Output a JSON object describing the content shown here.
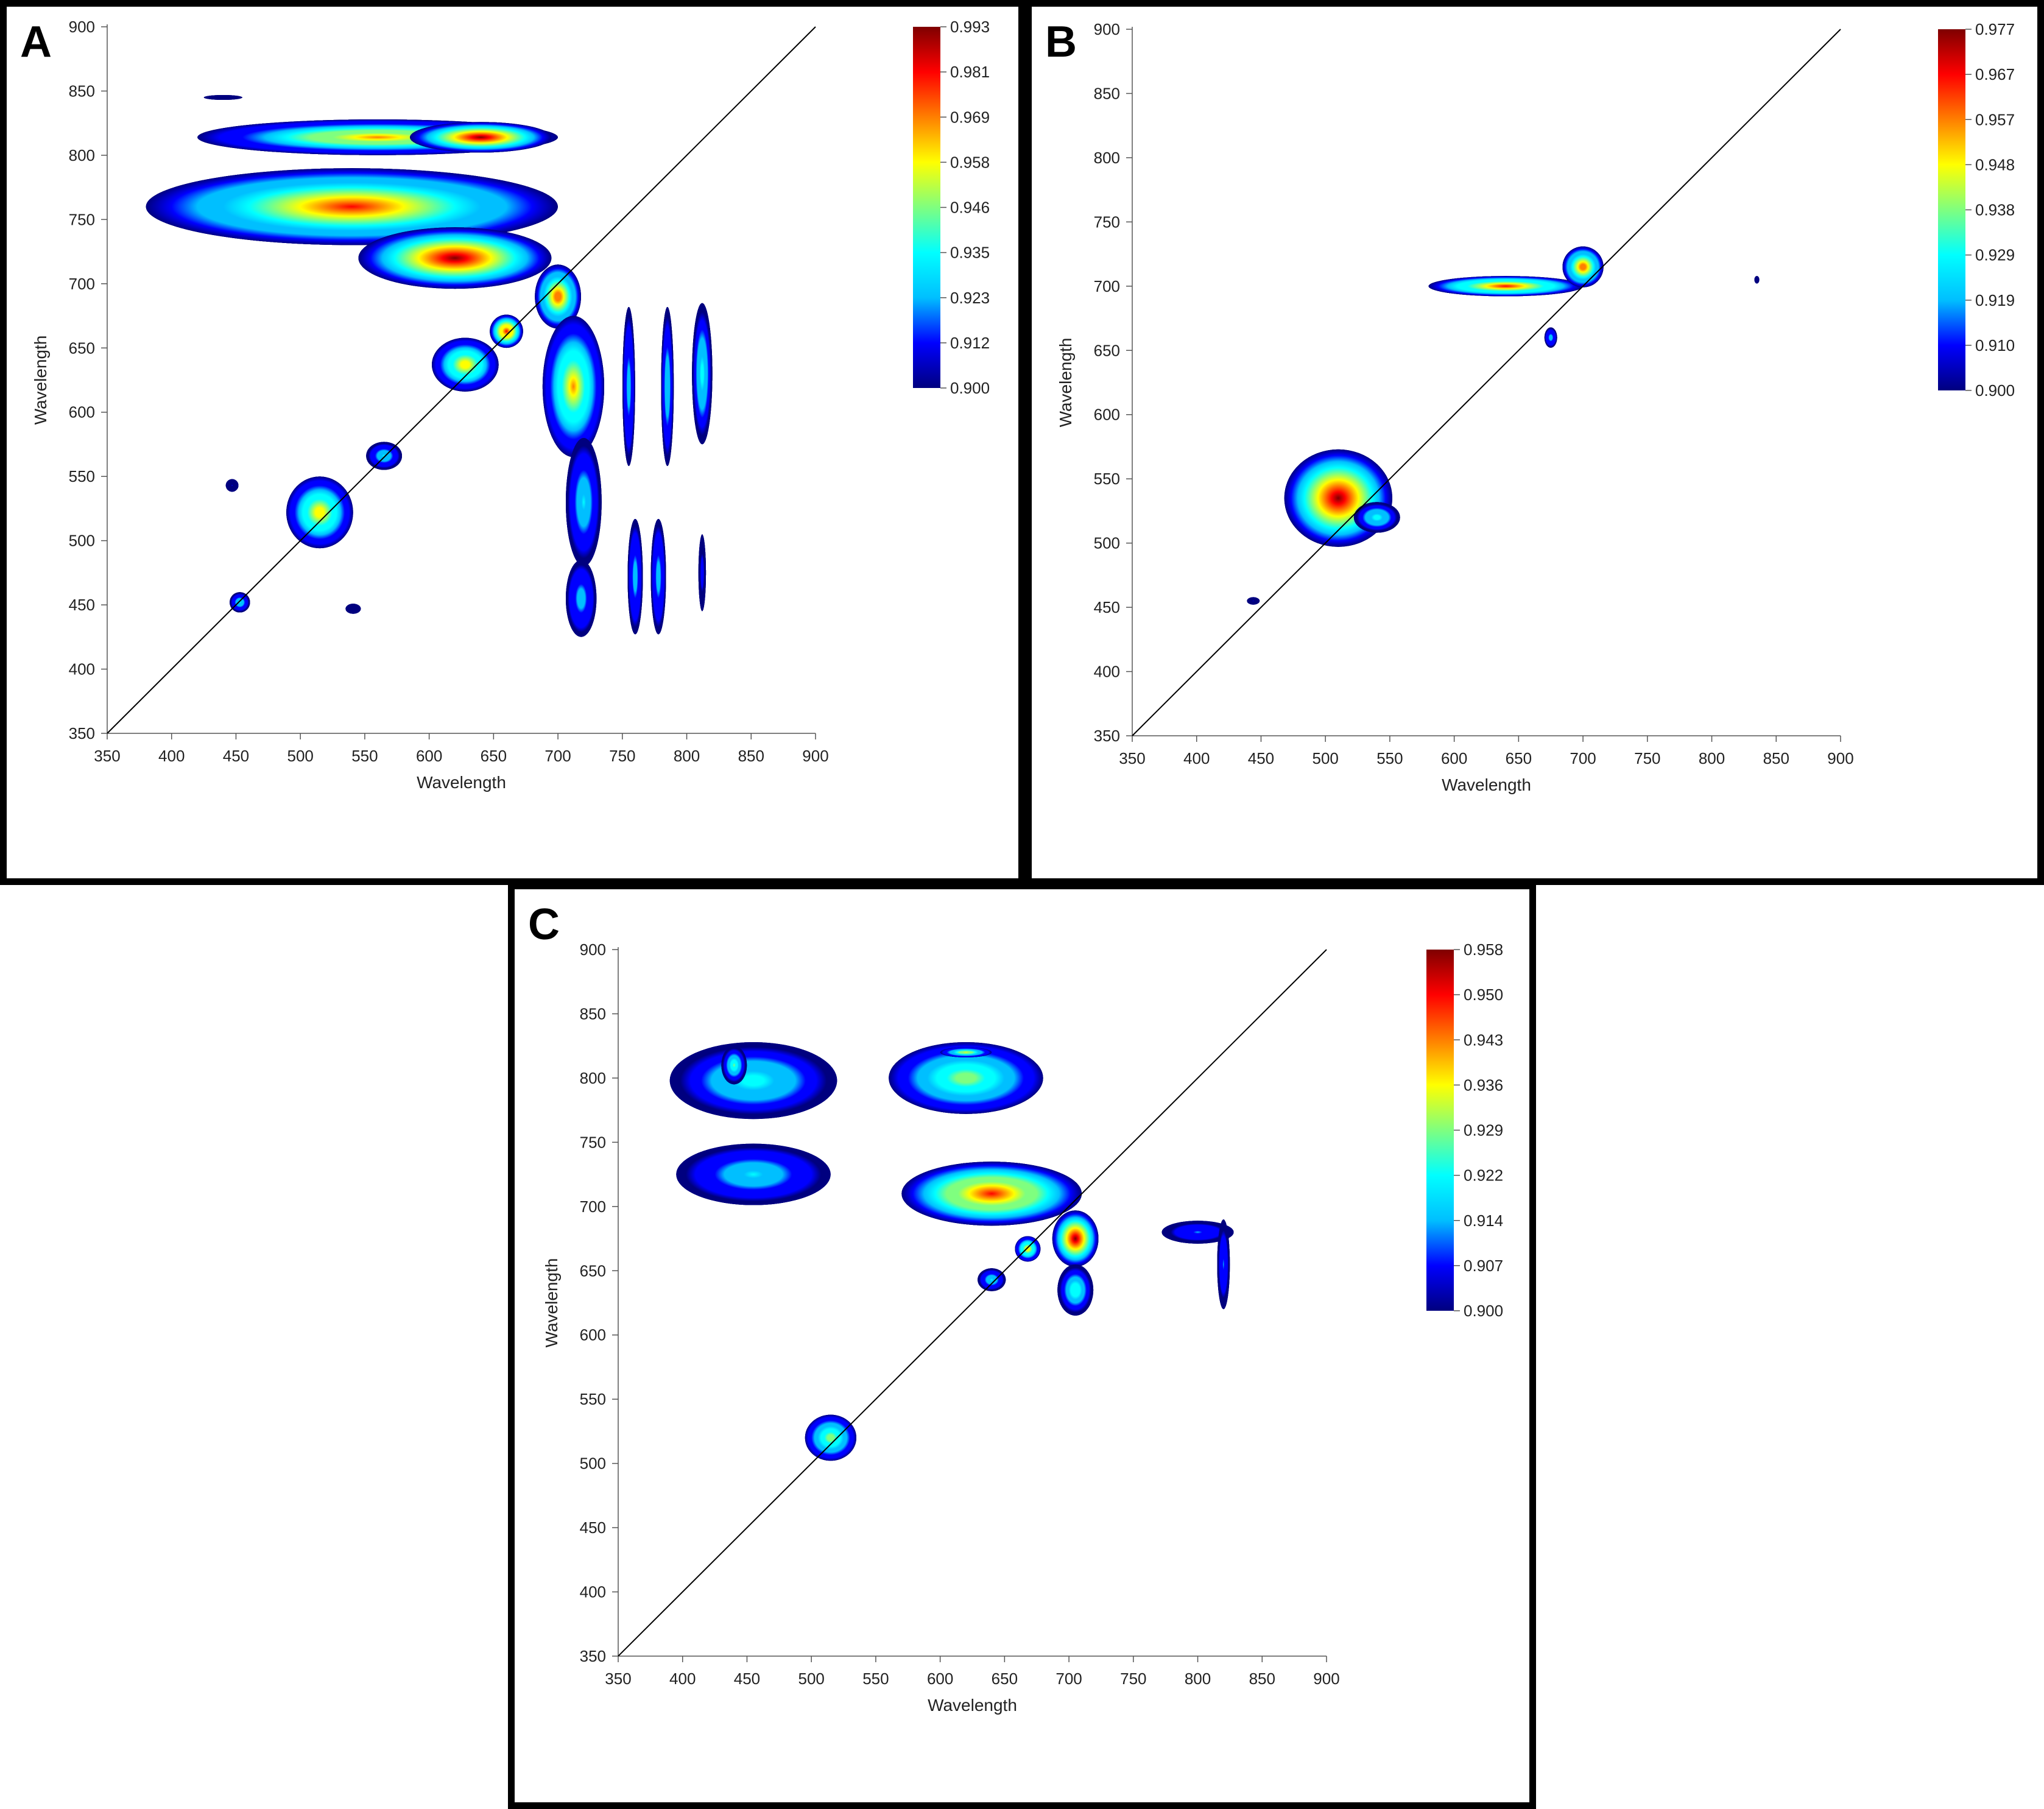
{
  "colors": {
    "colormap": [
      "#00007f",
      "#0000ff",
      "#00bfff",
      "#00ffff",
      "#7fff7f",
      "#ffff00",
      "#ff7f00",
      "#ff0000",
      "#7f0000"
    ],
    "diagonal": "#000000",
    "frame": "#000000"
  },
  "chart_data": [
    {
      "panel": "A",
      "type": "heatmap",
      "xlabel": "Wavelength",
      "ylabel": "Wavelength",
      "xlim": [
        350,
        900
      ],
      "ylim": [
        350,
        900
      ],
      "x_ticks": [
        "350",
        "400",
        "450",
        "500",
        "550",
        "600",
        "650",
        "700",
        "750",
        "800",
        "850",
        "900"
      ],
      "y_ticks": [
        "350",
        "400",
        "450",
        "500",
        "550",
        "600",
        "650",
        "700",
        "750",
        "800",
        "850",
        "900"
      ],
      "colorbar": {
        "min": 0.9,
        "max": 0.993,
        "labels": [
          "0.993",
          "0.981",
          "0.969",
          "0.958",
          "0.946",
          "0.935",
          "0.923",
          "0.912",
          "0.900"
        ]
      },
      "diagonal": true,
      "blobs": [
        {
          "x": 560,
          "y": 814,
          "rx": 140,
          "ry": 14,
          "v": 0.968
        },
        {
          "x": 640,
          "y": 814,
          "rx": 55,
          "ry": 12,
          "v": 0.99
        },
        {
          "x": 540,
          "y": 760,
          "rx": 160,
          "ry": 30,
          "v": 0.976
        },
        {
          "x": 620,
          "y": 720,
          "rx": 75,
          "ry": 24,
          "v": 0.99
        },
        {
          "x": 700,
          "y": 690,
          "rx": 18,
          "ry": 25,
          "v": 0.975
        },
        {
          "x": 712,
          "y": 620,
          "rx": 24,
          "ry": 55,
          "v": 0.965
        },
        {
          "x": 720,
          "y": 530,
          "rx": 14,
          "ry": 50,
          "v": 0.93
        },
        {
          "x": 718,
          "y": 455,
          "rx": 12,
          "ry": 30,
          "v": 0.925
        },
        {
          "x": 660,
          "y": 663,
          "rx": 13,
          "ry": 13,
          "v": 0.985
        },
        {
          "x": 628,
          "y": 637,
          "rx": 26,
          "ry": 21,
          "v": 0.962
        },
        {
          "x": 515,
          "y": 522,
          "rx": 26,
          "ry": 28,
          "v": 0.962
        },
        {
          "x": 565,
          "y": 566,
          "rx": 14,
          "ry": 11,
          "v": 0.932
        },
        {
          "x": 453,
          "y": 452,
          "rx": 8,
          "ry": 8,
          "v": 0.932
        },
        {
          "x": 447,
          "y": 543,
          "rx": 5,
          "ry": 5,
          "v": 0.906
        },
        {
          "x": 541,
          "y": 447,
          "rx": 6,
          "ry": 4,
          "v": 0.905
        },
        {
          "x": 755,
          "y": 620,
          "rx": 5,
          "ry": 62,
          "v": 0.925
        },
        {
          "x": 785,
          "y": 620,
          "rx": 5,
          "ry": 62,
          "v": 0.928
        },
        {
          "x": 812,
          "y": 630,
          "rx": 8,
          "ry": 55,
          "v": 0.935
        },
        {
          "x": 760,
          "y": 472,
          "rx": 6,
          "ry": 45,
          "v": 0.925
        },
        {
          "x": 778,
          "y": 472,
          "rx": 6,
          "ry": 45,
          "v": 0.925
        },
        {
          "x": 812,
          "y": 475,
          "rx": 3,
          "ry": 30,
          "v": 0.91
        },
        {
          "x": 440,
          "y": 845,
          "rx": 15,
          "ry": 2,
          "v": 0.905
        }
      ]
    },
    {
      "panel": "B",
      "type": "heatmap",
      "xlabel": "Wavelength",
      "ylabel": "Wavelength",
      "xlim": [
        350,
        900
      ],
      "ylim": [
        350,
        900
      ],
      "x_ticks": [
        "350",
        "400",
        "450",
        "500",
        "550",
        "600",
        "650",
        "700",
        "750",
        "800",
        "850",
        "900"
      ],
      "y_ticks": [
        "350",
        "400",
        "450",
        "500",
        "550",
        "600",
        "650",
        "700",
        "750",
        "800",
        "850",
        "900"
      ],
      "colorbar": {
        "min": 0.9,
        "max": 0.977,
        "labels": [
          "0.977",
          "0.967",
          "0.957",
          "0.948",
          "0.938",
          "0.929",
          "0.919",
          "0.910",
          "0.900"
        ]
      },
      "diagonal": true,
      "blobs": [
        {
          "x": 510,
          "y": 535,
          "rx": 42,
          "ry": 38,
          "v": 0.975
        },
        {
          "x": 540,
          "y": 520,
          "rx": 18,
          "ry": 12,
          "v": 0.93
        },
        {
          "x": 640,
          "y": 700,
          "rx": 60,
          "ry": 8,
          "v": 0.965
        },
        {
          "x": 700,
          "y": 715,
          "rx": 16,
          "ry": 16,
          "v": 0.962
        },
        {
          "x": 675,
          "y": 660,
          "rx": 5,
          "ry": 8,
          "v": 0.92
        },
        {
          "x": 444,
          "y": 455,
          "rx": 5,
          "ry": 3,
          "v": 0.905
        },
        {
          "x": 835,
          "y": 705,
          "rx": 2,
          "ry": 3,
          "v": 0.905
        }
      ]
    },
    {
      "panel": "C",
      "type": "heatmap",
      "xlabel": "Wavelength",
      "ylabel": "Wavelength",
      "xlim": [
        350,
        900
      ],
      "ylim": [
        350,
        900
      ],
      "x_ticks": [
        "350",
        "400",
        "450",
        "500",
        "550",
        "600",
        "650",
        "700",
        "750",
        "800",
        "850",
        "900"
      ],
      "y_ticks": [
        "350",
        "400",
        "450",
        "500",
        "550",
        "600",
        "650",
        "700",
        "750",
        "800",
        "850",
        "900"
      ],
      "colorbar": {
        "min": 0.9,
        "max": 0.958,
        "labels": [
          "0.958",
          "0.950",
          "0.943",
          "0.936",
          "0.929",
          "0.922",
          "0.914",
          "0.907",
          "0.900"
        ]
      },
      "diagonal": true,
      "blobs": [
        {
          "x": 455,
          "y": 798,
          "rx": 65,
          "ry": 30,
          "v": 0.922
        },
        {
          "x": 440,
          "y": 810,
          "rx": 10,
          "ry": 15,
          "v": 0.928
        },
        {
          "x": 620,
          "y": 800,
          "rx": 60,
          "ry": 28,
          "v": 0.93
        },
        {
          "x": 620,
          "y": 820,
          "rx": 20,
          "ry": 4,
          "v": 0.936
        },
        {
          "x": 455,
          "y": 725,
          "rx": 60,
          "ry": 24,
          "v": 0.92
        },
        {
          "x": 640,
          "y": 710,
          "rx": 70,
          "ry": 25,
          "v": 0.952
        },
        {
          "x": 705,
          "y": 675,
          "rx": 18,
          "ry": 22,
          "v": 0.955
        },
        {
          "x": 705,
          "y": 635,
          "rx": 14,
          "ry": 20,
          "v": 0.925
        },
        {
          "x": 668,
          "y": 667,
          "rx": 10,
          "ry": 10,
          "v": 0.938
        },
        {
          "x": 640,
          "y": 643,
          "rx": 11,
          "ry": 9,
          "v": 0.92
        },
        {
          "x": 515,
          "y": 520,
          "rx": 20,
          "ry": 18,
          "v": 0.93
        },
        {
          "x": 800,
          "y": 680,
          "rx": 28,
          "ry": 9,
          "v": 0.912
        },
        {
          "x": 820,
          "y": 655,
          "rx": 5,
          "ry": 35,
          "v": 0.912
        }
      ]
    }
  ],
  "panels": [
    {
      "letter": "A"
    },
    {
      "letter": "B"
    },
    {
      "letter": "C"
    }
  ]
}
